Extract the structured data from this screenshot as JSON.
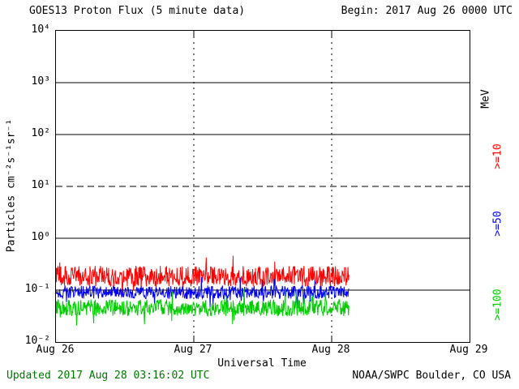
{
  "header": {
    "title": "GOES13 Proton Flux (5 minute data)",
    "begin_label": "Begin: 2017 Aug 26 0000 UTC"
  },
  "footer": {
    "updated": "Updated 2017 Aug 28 03:16:02 UTC",
    "source": "NOAA/SWPC Boulder, CO USA"
  },
  "chart_data": {
    "type": "line",
    "title": "GOES13 Proton Flux (5 minute data)",
    "xlabel": "Universal Time",
    "ylabel": "Particles cm⁻²s⁻¹sr⁻¹",
    "right_axis_label": "MeV",
    "x_ticks": [
      "Aug 26",
      "Aug 27",
      "Aug 28",
      "Aug 29"
    ],
    "x_range": {
      "start": "2017 Aug 26 0000 UTC",
      "days": 3
    },
    "y_scale": "log",
    "ylim_exponents": [
      -2,
      4
    ],
    "y_tick_labels": [
      "10⁴",
      "10³",
      "10²",
      "10¹",
      "10⁰",
      "10⁻¹",
      "10⁻²"
    ],
    "y_tick_exponents": [
      4,
      3,
      2,
      1,
      0,
      -1,
      -2
    ],
    "grid": {
      "solid_exponents": [
        3,
        2,
        0,
        -1
      ],
      "dashed_exponents": [
        1
      ],
      "vertical_dotted_days": [
        1,
        2
      ]
    },
    "cadence_minutes": 5,
    "data_end_frac": 0.71,
    "series": [
      {
        "name": ">=10",
        "unit": "MeV",
        "color": "#FF0000",
        "approx_flux_level": 0.2,
        "flux_range": [
          0.1,
          0.45
        ],
        "baseline_log10": -0.73,
        "noise_log10": 0.2
      },
      {
        "name": ">=50",
        "unit": "MeV",
        "color": "#0000EE",
        "approx_flux_level": 0.09,
        "flux_range": [
          0.05,
          0.16
        ],
        "baseline_log10": -1.04,
        "noise_log10": 0.13
      },
      {
        "name": ">=100",
        "unit": "MeV",
        "color": "#00CC00",
        "approx_flux_level": 0.045,
        "flux_range": [
          0.025,
          0.09
        ],
        "baseline_log10": -1.34,
        "noise_log10": 0.16
      }
    ],
    "seed": 20170828
  }
}
